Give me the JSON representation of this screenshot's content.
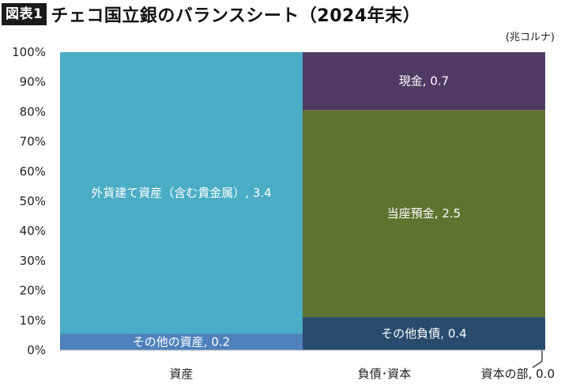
{
  "header": {
    "badge": "図表1",
    "title": "チェコ国立銀のバランスシート（2024年末）",
    "unit": "(兆コルナ)"
  },
  "colors": {
    "foreign_assets": "#4aacc5",
    "other_assets": "#4f81bd",
    "cash": "#4f3a63",
    "current_deposits": "#5f7330",
    "other_liabilities": "#284b6e",
    "equity": "#1f3864"
  },
  "chart_data": {
    "type": "bar",
    "stacked": "percent",
    "categories": [
      "資産",
      "負債･資本"
    ],
    "ylim": [
      0,
      100
    ],
    "yticks": [
      "0%",
      "10%",
      "20%",
      "30%",
      "40%",
      "50%",
      "60%",
      "70%",
      "80%",
      "90%",
      "100%"
    ],
    "series": [
      {
        "column": "資産",
        "segments": [
          {
            "name": "その他の資産",
            "value": 0.2,
            "label": "その他の資産, 0.2",
            "color_key": "other_assets"
          },
          {
            "name": "外貨建て資産（含む貴金属）",
            "value": 3.4,
            "label": "外貨建て資産（含む貴金属）, 3.4",
            "color_key": "foreign_assets"
          }
        ]
      },
      {
        "column": "負債･資本",
        "segments": [
          {
            "name": "資本の部",
            "value": 0.0,
            "label": "資本の部, 0.0",
            "color_key": "equity"
          },
          {
            "name": "その他負債",
            "value": 0.4,
            "label": "その他負債, 0.4",
            "color_key": "other_liabilities"
          },
          {
            "name": "当座預金",
            "value": 2.5,
            "label": "当座預金, 2.5",
            "color_key": "current_deposits"
          },
          {
            "name": "現金",
            "value": 0.7,
            "label": "現金, 0.7",
            "color_key": "cash"
          }
        ]
      }
    ]
  }
}
